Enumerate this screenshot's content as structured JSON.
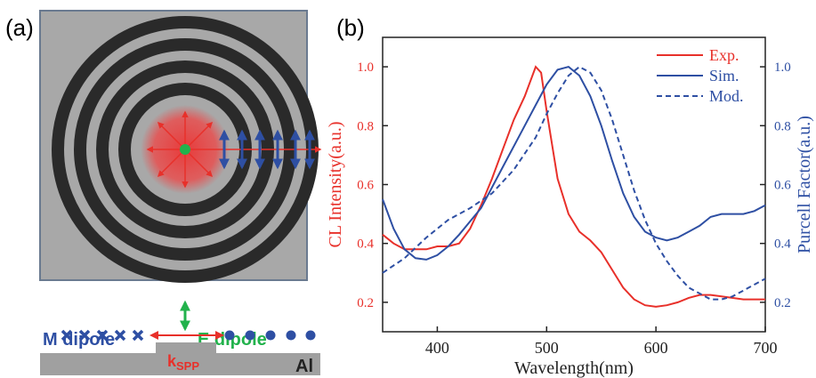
{
  "panel_a": {
    "label": "(a)",
    "m_dipole": "M dipole",
    "e_dipole": "E dipole",
    "k": "k",
    "k_sub": "SPP",
    "metal": "Al"
  },
  "chart_data": {
    "type": "line",
    "panel_label": "(b)",
    "xlabel": "Wavelength(nm)",
    "ylabel": "CL Intensity(a.u.)",
    "y2label": "Purcell Factor(a.u.)",
    "xlim": [
      350,
      700
    ],
    "xticks": [
      400,
      500,
      600,
      700
    ],
    "ylim": [
      0.1,
      1.1
    ],
    "yticks": [
      0.2,
      0.4,
      0.6,
      0.8,
      {
        "value": 1,
        "label": "1.0"
      }
    ],
    "y2lim": [
      0.1,
      1.1
    ],
    "y2ticks": [
      0.2,
      0.4,
      0.6,
      0.8,
      {
        "value": 1,
        "label": "1.0"
      }
    ],
    "legend": "upper right",
    "ycolor": "#e8302a",
    "y2color": "#2e4fa3",
    "series": [
      {
        "name": "Exp.",
        "color": "#e8302a",
        "dash": false,
        "axis": "y",
        "x": [
          350,
          360,
          370,
          380,
          390,
          400,
          410,
          420,
          430,
          440,
          450,
          460,
          470,
          480,
          490,
          495,
          500,
          510,
          520,
          530,
          540,
          550,
          560,
          570,
          580,
          590,
          600,
          610,
          620,
          630,
          640,
          650,
          660,
          680,
          700
        ],
        "values": [
          0.43,
          0.4,
          0.38,
          0.38,
          0.38,
          0.39,
          0.39,
          0.4,
          0.45,
          0.53,
          0.62,
          0.72,
          0.82,
          0.9,
          1.0,
          0.98,
          0.85,
          0.62,
          0.5,
          0.44,
          0.41,
          0.37,
          0.31,
          0.25,
          0.21,
          0.19,
          0.185,
          0.19,
          0.2,
          0.215,
          0.225,
          0.225,
          0.22,
          0.21,
          0.21
        ]
      },
      {
        "name": "Sim.",
        "color": "#2e4fa3",
        "dash": false,
        "axis": "y2",
        "x": [
          350,
          360,
          370,
          380,
          390,
          400,
          410,
          420,
          440,
          460,
          480,
          490,
          500,
          510,
          520,
          530,
          540,
          550,
          560,
          570,
          580,
          590,
          600,
          610,
          620,
          630,
          640,
          650,
          660,
          670,
          680,
          690,
          700
        ],
        "values": [
          0.55,
          0.45,
          0.38,
          0.35,
          0.345,
          0.36,
          0.39,
          0.43,
          0.52,
          0.66,
          0.8,
          0.87,
          0.94,
          0.99,
          1.0,
          0.97,
          0.9,
          0.8,
          0.68,
          0.57,
          0.49,
          0.44,
          0.42,
          0.41,
          0.42,
          0.44,
          0.46,
          0.49,
          0.5,
          0.5,
          0.5,
          0.51,
          0.53
        ]
      },
      {
        "name": "Mod.",
        "color": "#2e4fa3",
        "dash": true,
        "axis": "y2",
        "x": [
          350,
          370,
          390,
          410,
          430,
          450,
          470,
          490,
          500,
          510,
          520,
          530,
          540,
          550,
          560,
          570,
          580,
          590,
          600,
          610,
          620,
          630,
          640,
          650,
          660,
          670,
          680,
          690,
          700
        ],
        "values": [
          0.3,
          0.35,
          0.42,
          0.48,
          0.52,
          0.57,
          0.65,
          0.76,
          0.84,
          0.91,
          0.97,
          1.0,
          0.98,
          0.92,
          0.82,
          0.7,
          0.58,
          0.48,
          0.4,
          0.34,
          0.29,
          0.25,
          0.23,
          0.21,
          0.21,
          0.22,
          0.24,
          0.26,
          0.28
        ]
      }
    ]
  }
}
